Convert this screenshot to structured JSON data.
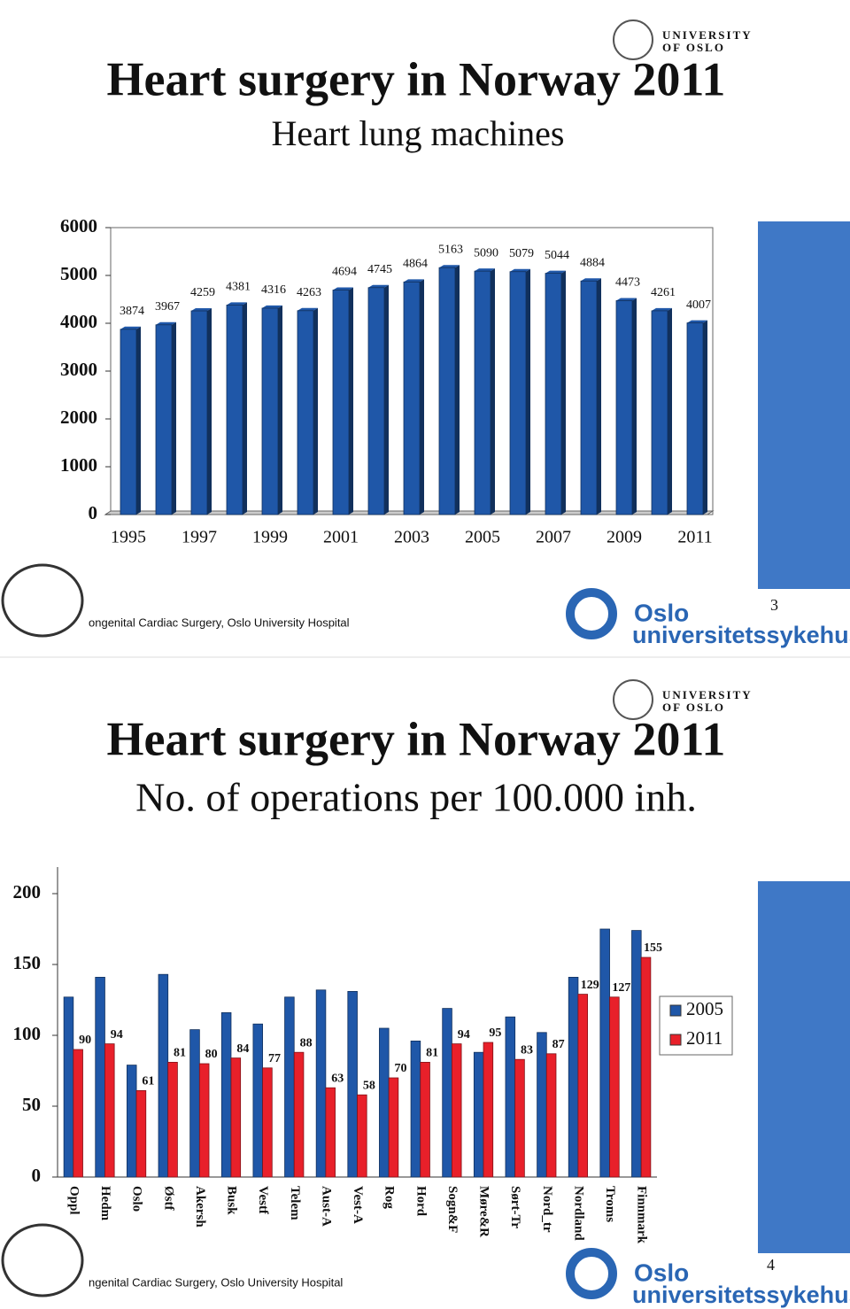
{
  "chart_data": [
    {
      "type": "bar",
      "title": "Heart surgery in Norway 2011",
      "subtitle": "Heart lung machines",
      "categories": [
        "1995",
        null,
        "1997",
        null,
        "1999",
        null,
        "2001",
        null,
        "2003",
        null,
        "2005",
        null,
        "2007",
        null,
        "2009",
        null,
        "2011"
      ],
      "values": [
        3874,
        3967,
        4259,
        4381,
        4316,
        4263,
        4694,
        4745,
        4864,
        5163,
        5090,
        5079,
        5044,
        4884,
        4473,
        4261,
        4007
      ],
      "color": "#1f57a8",
      "show_labels": true,
      "ylim": [
        0,
        6000
      ],
      "yticks": [
        0,
        1000,
        2000,
        3000,
        4000,
        5000,
        6000
      ],
      "grid": false
    },
    {
      "type": "bar",
      "title": "Heart surgery in Norway 2011",
      "subtitle": "No. of operations per 100.000 inh.",
      "categories": [
        "Oppl",
        "Hedm",
        "Oslo",
        "Østf",
        "Akersh",
        "Busk",
        "Vestf",
        "Telem",
        "Aust-A",
        "Vest-A",
        "Rog",
        "Hord",
        "Sogn&F",
        "Møre&R",
        "Sørt-Tr",
        "Nord_tr",
        "Nordland",
        "Troms",
        "Finnmark"
      ],
      "series": [
        {
          "name": "2005",
          "color": "#1f57a8",
          "show_labels": false,
          "values": [
            127,
            141,
            79,
            143,
            104,
            116,
            108,
            127,
            132,
            131,
            105,
            96,
            119,
            88,
            113,
            102,
            141,
            175,
            174
          ]
        },
        {
          "name": "2011",
          "color": "#e8202a",
          "show_labels": true,
          "values": [
            90,
            94,
            61,
            81,
            80,
            84,
            77,
            88,
            63,
            58,
            70,
            81,
            94,
            95,
            83,
            87,
            129,
            127,
            155
          ]
        }
      ],
      "ylim": [
        0,
        200
      ],
      "yticks": [
        0,
        50,
        100,
        150,
        200
      ],
      "grid": false,
      "legend": "right"
    }
  ],
  "slides": [
    {
      "university": [
        "UNIVERSITY",
        "OF OSLO"
      ],
      "footer": "ongenital Cardiac Surgery, Oslo University Hospital",
      "hospital": [
        "Oslo",
        "universitetssykehus"
      ],
      "page_number": "3"
    },
    {
      "university": [
        "UNIVERSITY",
        "OF OSLO"
      ],
      "footer": "ngenital Cardiac Surgery, Oslo University Hospital",
      "hospital": [
        "Oslo",
        "universitetssykehus"
      ],
      "page_number": "4"
    }
  ]
}
